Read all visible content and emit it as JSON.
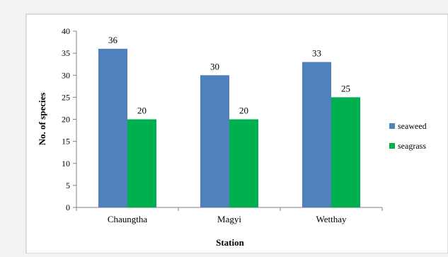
{
  "chart_data": {
    "type": "bar",
    "categories": [
      "Chaungtha",
      "Magyi",
      "Wetthay"
    ],
    "series": [
      {
        "name": "seaweed",
        "color": "#4f81bd",
        "values": [
          36,
          30,
          33
        ]
      },
      {
        "name": "seagrass",
        "color": "#00b050",
        "values": [
          20,
          20,
          25
        ]
      }
    ],
    "xlabel": "Station",
    "ylabel": "No. of species",
    "ylim": [
      0,
      40
    ],
    "yticks": [
      0,
      5,
      10,
      15,
      20,
      25,
      30,
      35,
      40
    ],
    "grid": false,
    "legend_position": "right"
  }
}
